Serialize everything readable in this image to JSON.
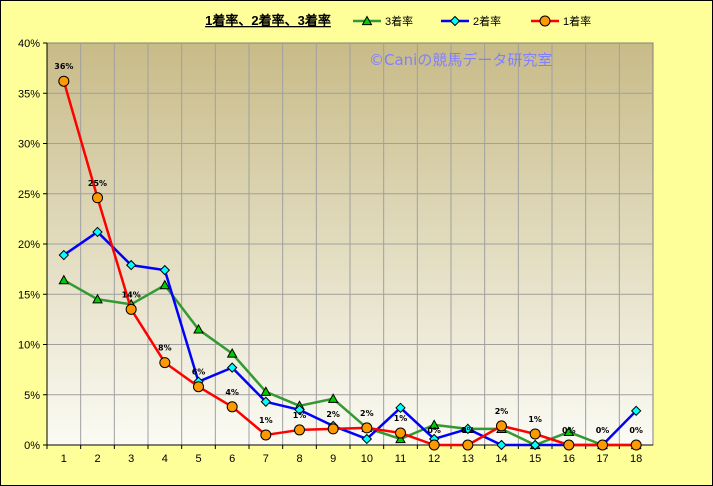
{
  "chart_data": {
    "type": "line",
    "title": "1着率、2着率、3着率",
    "watermark": "©Caniの競馬データ研究室",
    "categories": [
      "1",
      "2",
      "3",
      "4",
      "5",
      "6",
      "7",
      "8",
      "9",
      "10",
      "11",
      "12",
      "13",
      "14",
      "15",
      "16",
      "17",
      "18"
    ],
    "ylim": [
      0,
      40
    ],
    "yticks": [
      "0%",
      "5%",
      "10%",
      "15%",
      "20%",
      "25%",
      "30%",
      "35%",
      "40%"
    ],
    "grid": true,
    "legend_position": "top-right",
    "series": [
      {
        "name": "3着率",
        "color": "#339933",
        "marker": "triangle",
        "marker_color": "#00cc00",
        "values": [
          16.4,
          14.5,
          14.0,
          15.9,
          11.5,
          9.1,
          5.3,
          3.9,
          4.6,
          1.7,
          0.6,
          2.0,
          1.6,
          1.6,
          0,
          1.3,
          0,
          0
        ]
      },
      {
        "name": "2着率",
        "color": "#0000ff",
        "marker": "diamond",
        "marker_color": "#00ffff",
        "values": [
          18.9,
          21.2,
          17.9,
          17.4,
          6.3,
          7.7,
          4.3,
          3.5,
          1.9,
          0.6,
          3.7,
          0.6,
          1.6,
          0,
          0,
          0,
          0,
          3.4
        ]
      },
      {
        "name": "1着率",
        "color": "#ff0000",
        "marker": "circle",
        "marker_color": "#ff9900",
        "values": [
          36.2,
          24.6,
          13.5,
          8.2,
          5.8,
          3.8,
          1.0,
          1.5,
          1.6,
          1.7,
          1.2,
          0,
          0,
          1.9,
          1.1,
          0,
          0,
          0
        ],
        "data_labels": [
          "36%",
          "25%",
          "14%",
          "8%",
          "6%",
          "4%",
          "1%",
          "1%",
          "2%",
          "2%",
          "1%",
          "0%",
          "0%",
          "2%",
          "1%",
          "0%",
          "0%",
          "0%"
        ]
      }
    ]
  }
}
